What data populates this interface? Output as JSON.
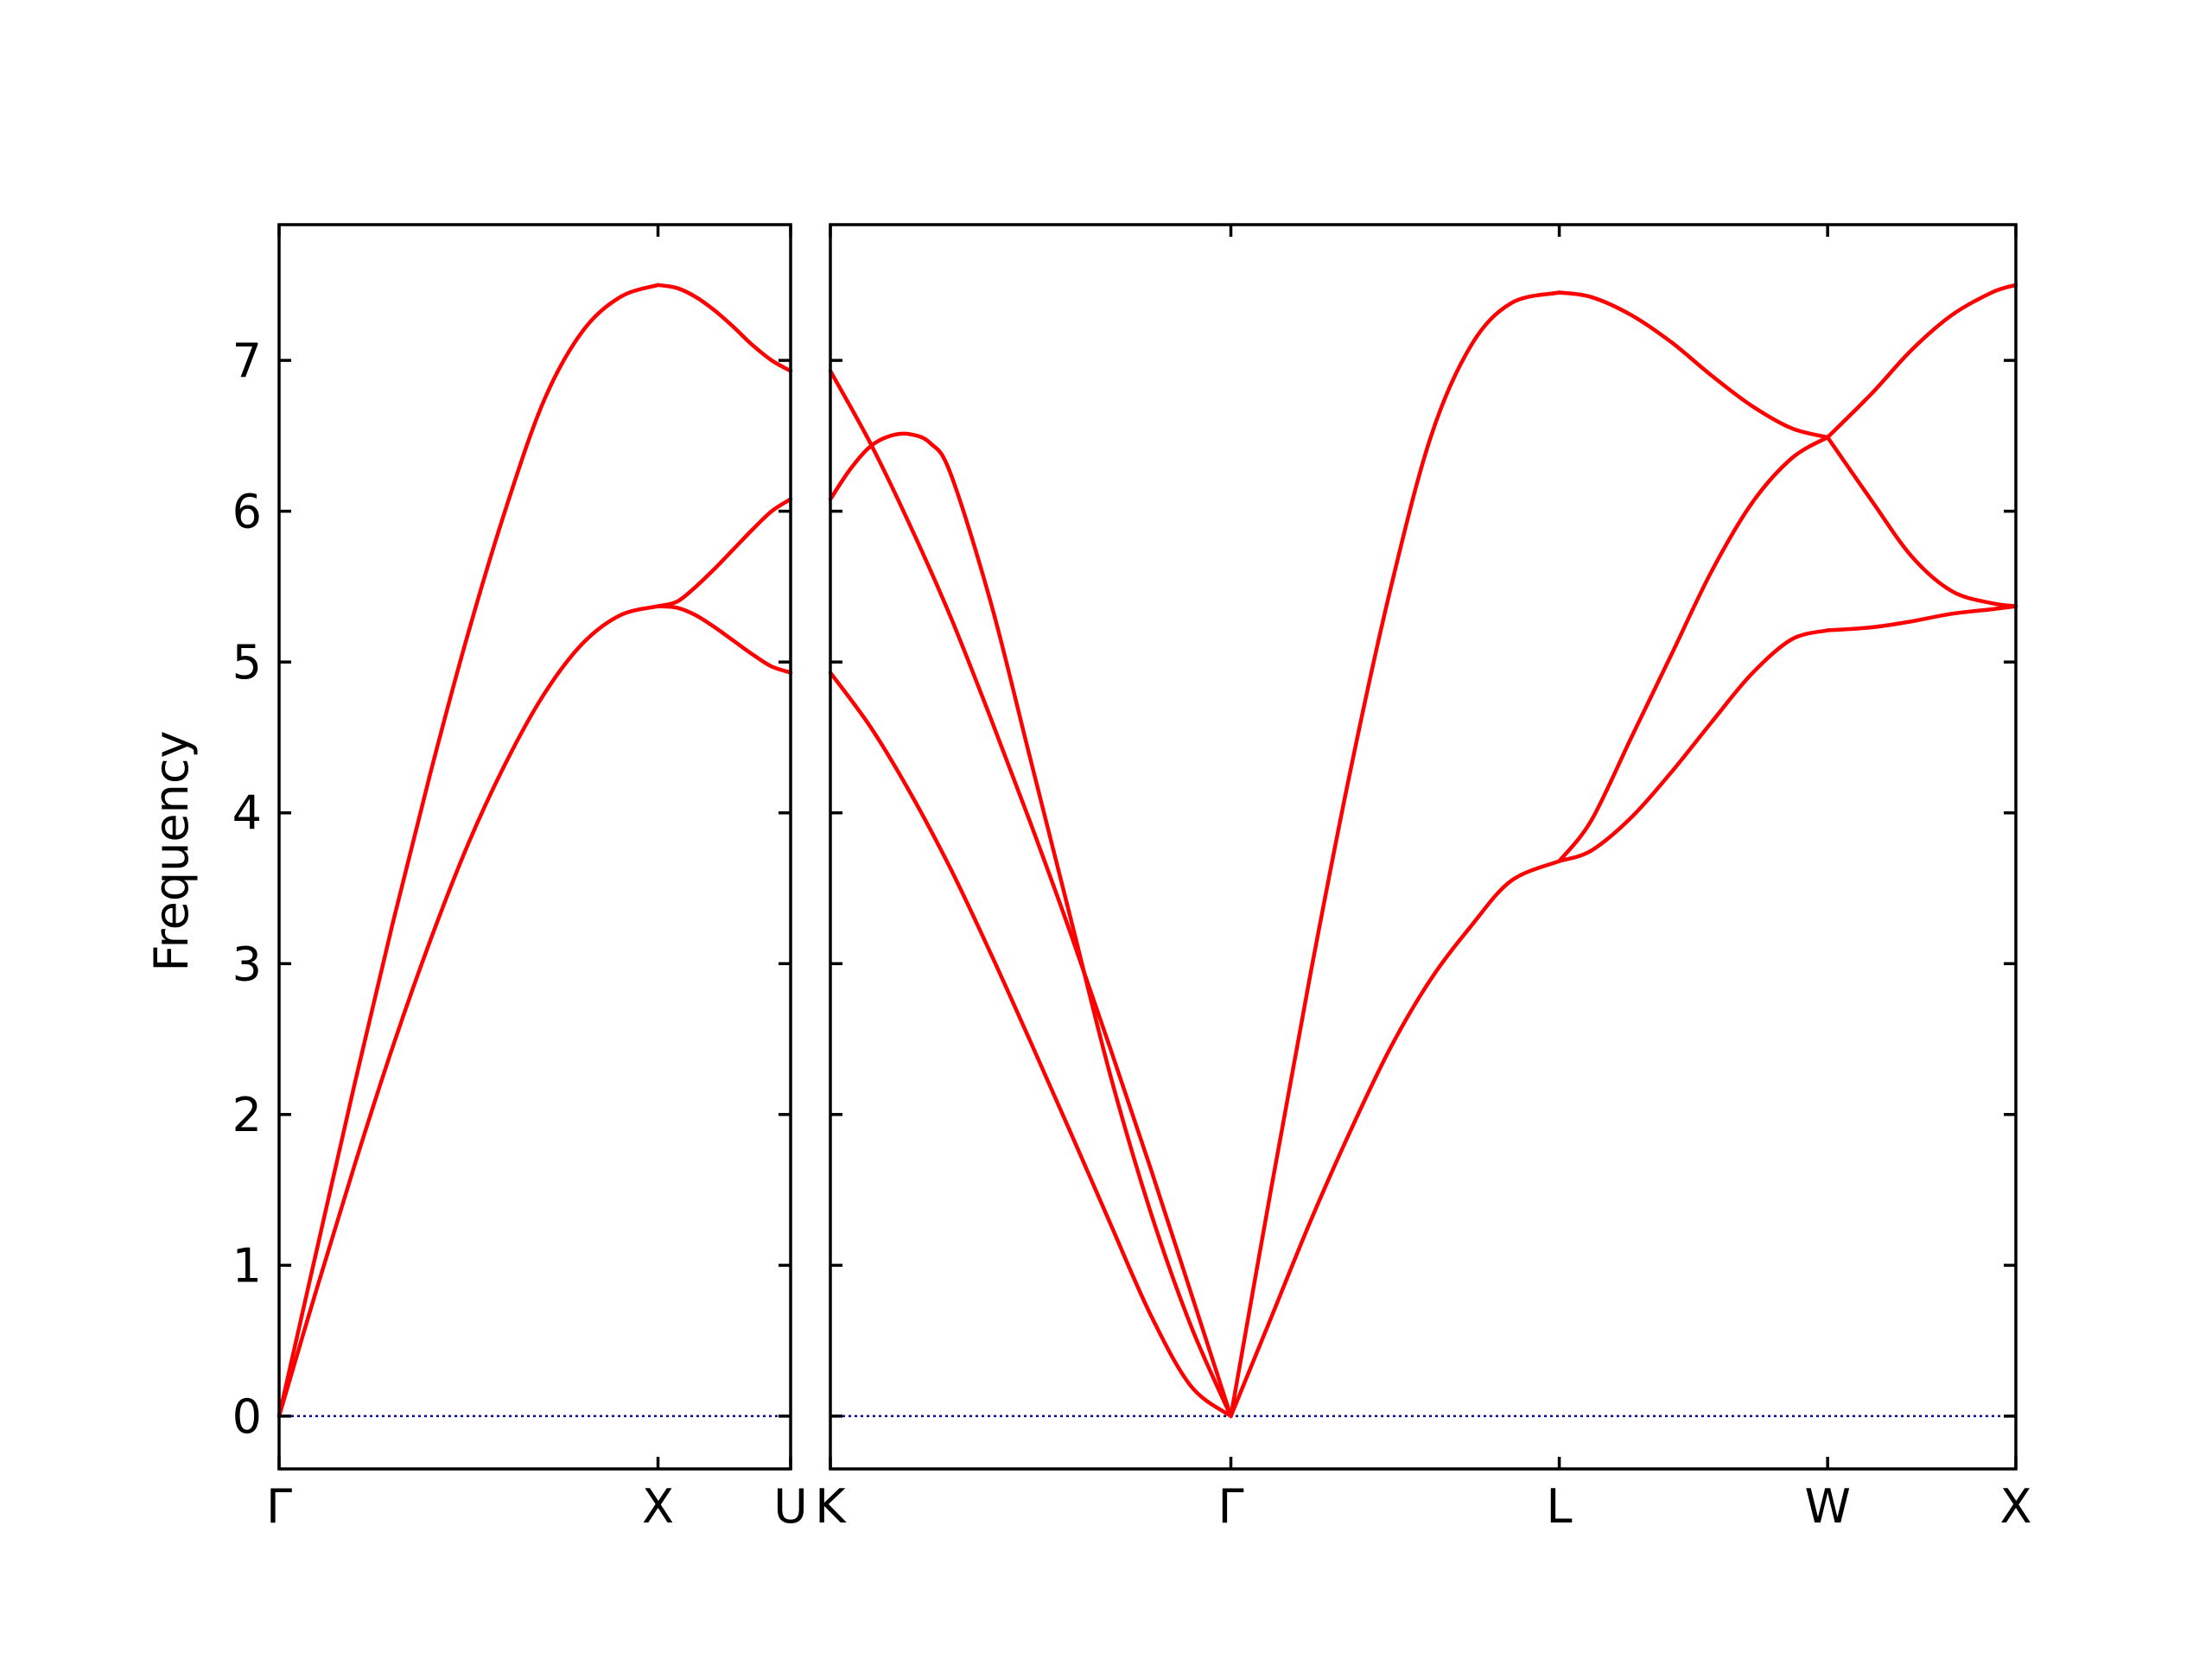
{
  "chart_data": {
    "type": "line",
    "ylabel": "Frequency",
    "ylim": [
      -0.35,
      7.9
    ],
    "yticks": [
      0,
      1,
      2,
      3,
      4,
      5,
      6,
      7
    ],
    "grid": false,
    "legend": "none",
    "colors": {
      "bands": "#ff0000",
      "zero_line": "#0000aa",
      "axes": "#000000"
    },
    "panels": [
      {
        "name": "left-panel",
        "xlim": [
          0,
          1.35
        ],
        "kpoints": [
          {
            "label": "Γ",
            "x": 0
          },
          {
            "label": "X",
            "x": 1.0
          },
          {
            "label": "U",
            "x": 1.35
          }
        ],
        "series": [
          {
            "x": [
              0,
              0.1,
              0.2,
              0.3,
              0.4,
              0.5,
              0.6,
              0.7,
              0.8,
              0.9,
              1.0
            ],
            "values": [
              0,
              1.11,
              2.21,
              3.27,
              4.27,
              5.2,
              6.03,
              6.74,
              7.19,
              7.42,
              7.5
            ]
          },
          {
            "x": [
              0,
              0.1,
              0.2,
              0.3,
              0.4,
              0.5,
              0.6,
              0.7,
              0.8,
              0.9,
              1.0
            ],
            "values": [
              0,
              0.85,
              1.67,
              2.45,
              3.16,
              3.8,
              4.34,
              4.79,
              5.12,
              5.31,
              5.37
            ]
          },
          {
            "x": [
              1.0,
              1.05,
              1.1,
              1.15,
              1.2,
              1.25,
              1.3,
              1.35
            ],
            "values": [
              7.5,
              7.48,
              7.42,
              7.33,
              7.22,
              7.1,
              7.0,
              6.93
            ]
          },
          {
            "x": [
              1.0,
              1.05,
              1.1,
              1.15,
              1.2,
              1.25,
              1.3,
              1.35
            ],
            "values": [
              5.37,
              5.4,
              5.5,
              5.62,
              5.75,
              5.88,
              6.0,
              6.08
            ]
          },
          {
            "x": [
              1.0,
              1.05,
              1.1,
              1.15,
              1.2,
              1.25,
              1.3,
              1.35
            ],
            "values": [
              5.37,
              5.36,
              5.31,
              5.23,
              5.14,
              5.05,
              4.97,
              4.93
            ]
          }
        ]
      },
      {
        "name": "right-panel",
        "xlim": [
          0,
          2.96
        ],
        "kpoints": [
          {
            "label": "K",
            "x": 0
          },
          {
            "label": "Γ",
            "x": 1.0
          },
          {
            "label": "L",
            "x": 1.82
          },
          {
            "label": "W",
            "x": 2.49
          },
          {
            "label": "X",
            "x": 2.96
          }
        ],
        "series": [
          {
            "x": [
              0,
              0.1,
              0.2,
              0.3,
              0.4,
              0.5,
              0.6,
              0.7,
              0.8,
              0.9,
              1.0
            ],
            "values": [
              6.93,
              6.45,
              5.9,
              5.3,
              4.63,
              3.93,
              3.2,
              2.43,
              1.64,
              0.82,
              0
            ]
          },
          {
            "x": [
              0,
              0.05,
              0.1,
              0.15,
              0.2,
              0.25,
              0.3,
              0.4,
              0.5,
              0.6,
              0.7,
              0.8,
              0.9,
              1.0
            ],
            "values": [
              6.08,
              6.28,
              6.43,
              6.5,
              6.51,
              6.45,
              6.25,
              5.4,
              4.35,
              3.3,
              2.25,
              1.35,
              0.6,
              0
            ]
          },
          {
            "x": [
              0,
              0.1,
              0.2,
              0.3,
              0.4,
              0.5,
              0.6,
              0.7,
              0.8,
              0.9,
              1.0
            ],
            "values": [
              4.93,
              4.57,
              4.13,
              3.63,
              3.07,
              2.48,
              1.88,
              1.27,
              0.67,
              0.2,
              0
            ]
          },
          {
            "x": [
              1.0,
              1.1,
              1.2,
              1.3,
              1.4,
              1.5,
              1.6,
              1.7,
              1.82
            ],
            "values": [
              0,
              1.5,
              2.95,
              4.3,
              5.5,
              6.5,
              7.1,
              7.38,
              7.45
            ]
          },
          {
            "x": [
              1.0,
              1.1,
              1.2,
              1.3,
              1.4,
              1.5,
              1.6,
              1.7,
              1.82
            ],
            "values": [
              0,
              0.65,
              1.3,
              1.9,
              2.45,
              2.9,
              3.25,
              3.55,
              3.68
            ]
          },
          {
            "x": [
              1.82,
              1.9,
              2.0,
              2.1,
              2.2,
              2.3,
              2.4,
              2.49
            ],
            "values": [
              7.45,
              7.42,
              7.3,
              7.12,
              6.9,
              6.7,
              6.55,
              6.49
            ]
          },
          {
            "x": [
              1.82,
              1.9,
              2.0,
              2.1,
              2.2,
              2.3,
              2.4,
              2.49
            ],
            "values": [
              3.68,
              3.95,
              4.5,
              5.05,
              5.6,
              6.05,
              6.35,
              6.49
            ]
          },
          {
            "x": [
              1.82,
              1.9,
              2.0,
              2.1,
              2.2,
              2.3,
              2.4,
              2.49
            ],
            "values": [
              3.68,
              3.75,
              3.97,
              4.27,
              4.6,
              4.92,
              5.15,
              5.21
            ]
          },
          {
            "x": [
              2.49,
              2.6,
              2.7,
              2.8,
              2.9,
              2.96
            ],
            "values": [
              6.49,
              6.78,
              7.07,
              7.3,
              7.45,
              7.5
            ]
          },
          {
            "x": [
              2.49,
              2.6,
              2.7,
              2.8,
              2.9,
              2.96
            ],
            "values": [
              6.49,
              6.07,
              5.7,
              5.47,
              5.39,
              5.37
            ]
          },
          {
            "x": [
              2.49,
              2.6,
              2.7,
              2.8,
              2.9,
              2.96
            ],
            "values": [
              5.21,
              5.23,
              5.27,
              5.32,
              5.35,
              5.37
            ]
          }
        ]
      }
    ]
  }
}
